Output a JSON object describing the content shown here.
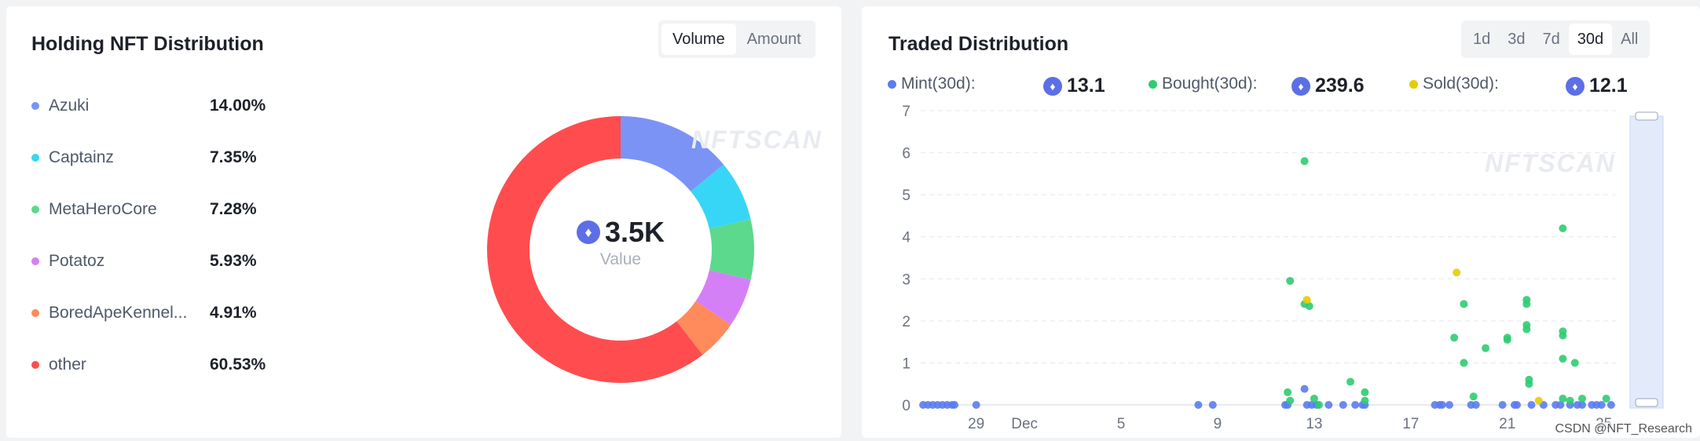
{
  "holding": {
    "title": "Holding NFT Distribution",
    "toggle": [
      "Volume",
      "Amount"
    ],
    "active_toggle": "Volume",
    "items": [
      {
        "name": "Azuki",
        "pct": "14.00%",
        "value": 14.0,
        "color": "#7b93f5"
      },
      {
        "name": "Captainz",
        "pct": "7.35%",
        "value": 7.35,
        "color": "#38d6f6"
      },
      {
        "name": "MetaHeroCore",
        "pct": "7.28%",
        "value": 7.28,
        "color": "#5cd98c"
      },
      {
        "name": "Potatoz",
        "pct": "5.93%",
        "value": 5.93,
        "color": "#d57ff7"
      },
      {
        "name": "BoredApeKennel...",
        "pct": "4.91%",
        "value": 4.91,
        "color": "#ff8a5b"
      },
      {
        "name": "other",
        "pct": "60.53%",
        "value": 60.53,
        "color": "#ff4d4f"
      }
    ],
    "center_value": "3.5K",
    "center_label": "Value",
    "watermark": "NFTSCAN"
  },
  "traded": {
    "title": "Traded Distribution",
    "ranges": [
      "1d",
      "3d",
      "7d",
      "30d",
      "All"
    ],
    "active_range": "30d",
    "stats": [
      {
        "label": "Mint(30d):",
        "value": "13.1",
        "color": "#5b7cf0"
      },
      {
        "label": "Bought(30d):",
        "value": "239.6",
        "color": "#2ecc71"
      },
      {
        "label": "Sold(30d):",
        "value": "12.1",
        "color": "#e6cc00"
      }
    ],
    "watermark": "NFTSCAN",
    "credit": "CSDN @NFT_Research"
  },
  "chart_data": {
    "type": "scatter",
    "title": "",
    "xlabel": "",
    "ylabel": "",
    "ylim": [
      0,
      7
    ],
    "y_ticks": [
      0,
      1,
      2,
      3,
      4,
      5,
      6,
      7
    ],
    "x_ticks": [
      {
        "label": "29",
        "day": 29
      },
      {
        "label": "Dec",
        "day": 31
      },
      {
        "label": "5",
        "day": 35
      },
      {
        "label": "9",
        "day": 39
      },
      {
        "label": "13",
        "day": 43
      },
      {
        "label": "17",
        "day": 47
      },
      {
        "label": "21",
        "day": 51
      },
      {
        "label": "25",
        "day": 55
      }
    ],
    "xlim": [
      26.7,
      55.5
    ],
    "grid": true,
    "series": [
      {
        "name": "Mint(30d)",
        "color": "#5b7cf0",
        "points": [
          [
            26.8,
            0
          ],
          [
            27,
            0
          ],
          [
            27.2,
            0
          ],
          [
            27.4,
            0
          ],
          [
            27.6,
            0
          ],
          [
            27.8,
            0
          ],
          [
            28,
            0
          ],
          [
            28.1,
            0
          ],
          [
            29,
            0
          ],
          [
            38.2,
            0
          ],
          [
            38.8,
            0
          ],
          [
            41.8,
            0
          ],
          [
            41.9,
            0
          ],
          [
            42.6,
            0.38
          ],
          [
            42.7,
            0
          ],
          [
            42.9,
            0
          ],
          [
            43.1,
            0
          ],
          [
            43.6,
            0
          ],
          [
            44.2,
            0
          ],
          [
            44.7,
            0
          ],
          [
            45,
            0
          ],
          [
            45.1,
            0
          ],
          [
            48,
            0
          ],
          [
            48.2,
            0
          ],
          [
            48.3,
            0
          ],
          [
            48.6,
            0
          ],
          [
            49.5,
            0
          ],
          [
            49.7,
            0
          ],
          [
            50.8,
            0
          ],
          [
            51.3,
            0
          ],
          [
            51.4,
            0
          ],
          [
            52,
            0
          ],
          [
            52.5,
            0
          ],
          [
            53,
            0
          ],
          [
            53.2,
            0
          ],
          [
            53.6,
            0
          ],
          [
            53.9,
            0
          ],
          [
            54.1,
            0
          ],
          [
            54.5,
            0
          ],
          [
            54.7,
            0
          ],
          [
            54.9,
            0
          ],
          [
            55.3,
            0
          ]
        ]
      },
      {
        "name": "Bought(30d)",
        "color": "#2ecc71",
        "points": [
          [
            42,
            2.95
          ],
          [
            41.9,
            0.3
          ],
          [
            42,
            0.1
          ],
          [
            42.6,
            2.4
          ],
          [
            42.8,
            2.35
          ],
          [
            42.6,
            5.8
          ],
          [
            43,
            0.15
          ],
          [
            43.2,
            0
          ],
          [
            44.5,
            0.55
          ],
          [
            45.1,
            0.3
          ],
          [
            45.1,
            0.1
          ],
          [
            48.8,
            1.6
          ],
          [
            49.2,
            2.4
          ],
          [
            49.2,
            1
          ],
          [
            49.6,
            0.2
          ],
          [
            50.1,
            1.35
          ],
          [
            51,
            1.6
          ],
          [
            51,
            1.55
          ],
          [
            51.8,
            2.5
          ],
          [
            51.8,
            2.4
          ],
          [
            51.8,
            1.9
          ],
          [
            51.8,
            1.8
          ],
          [
            51.9,
            0.6
          ],
          [
            51.9,
            0.5
          ],
          [
            53.3,
            4.2
          ],
          [
            53.3,
            1.75
          ],
          [
            53.3,
            1.65
          ],
          [
            53.3,
            1.1
          ],
          [
            53.8,
            1
          ],
          [
            53.3,
            0.15
          ],
          [
            53.6,
            0.1
          ],
          [
            54.1,
            0.15
          ],
          [
            55.1,
            0.15
          ]
        ]
      },
      {
        "name": "Sold(30d)",
        "color": "#e6cc00",
        "points": [
          [
            42.7,
            2.5
          ],
          [
            48.9,
            3.15
          ],
          [
            52.3,
            0.1
          ]
        ]
      }
    ]
  }
}
